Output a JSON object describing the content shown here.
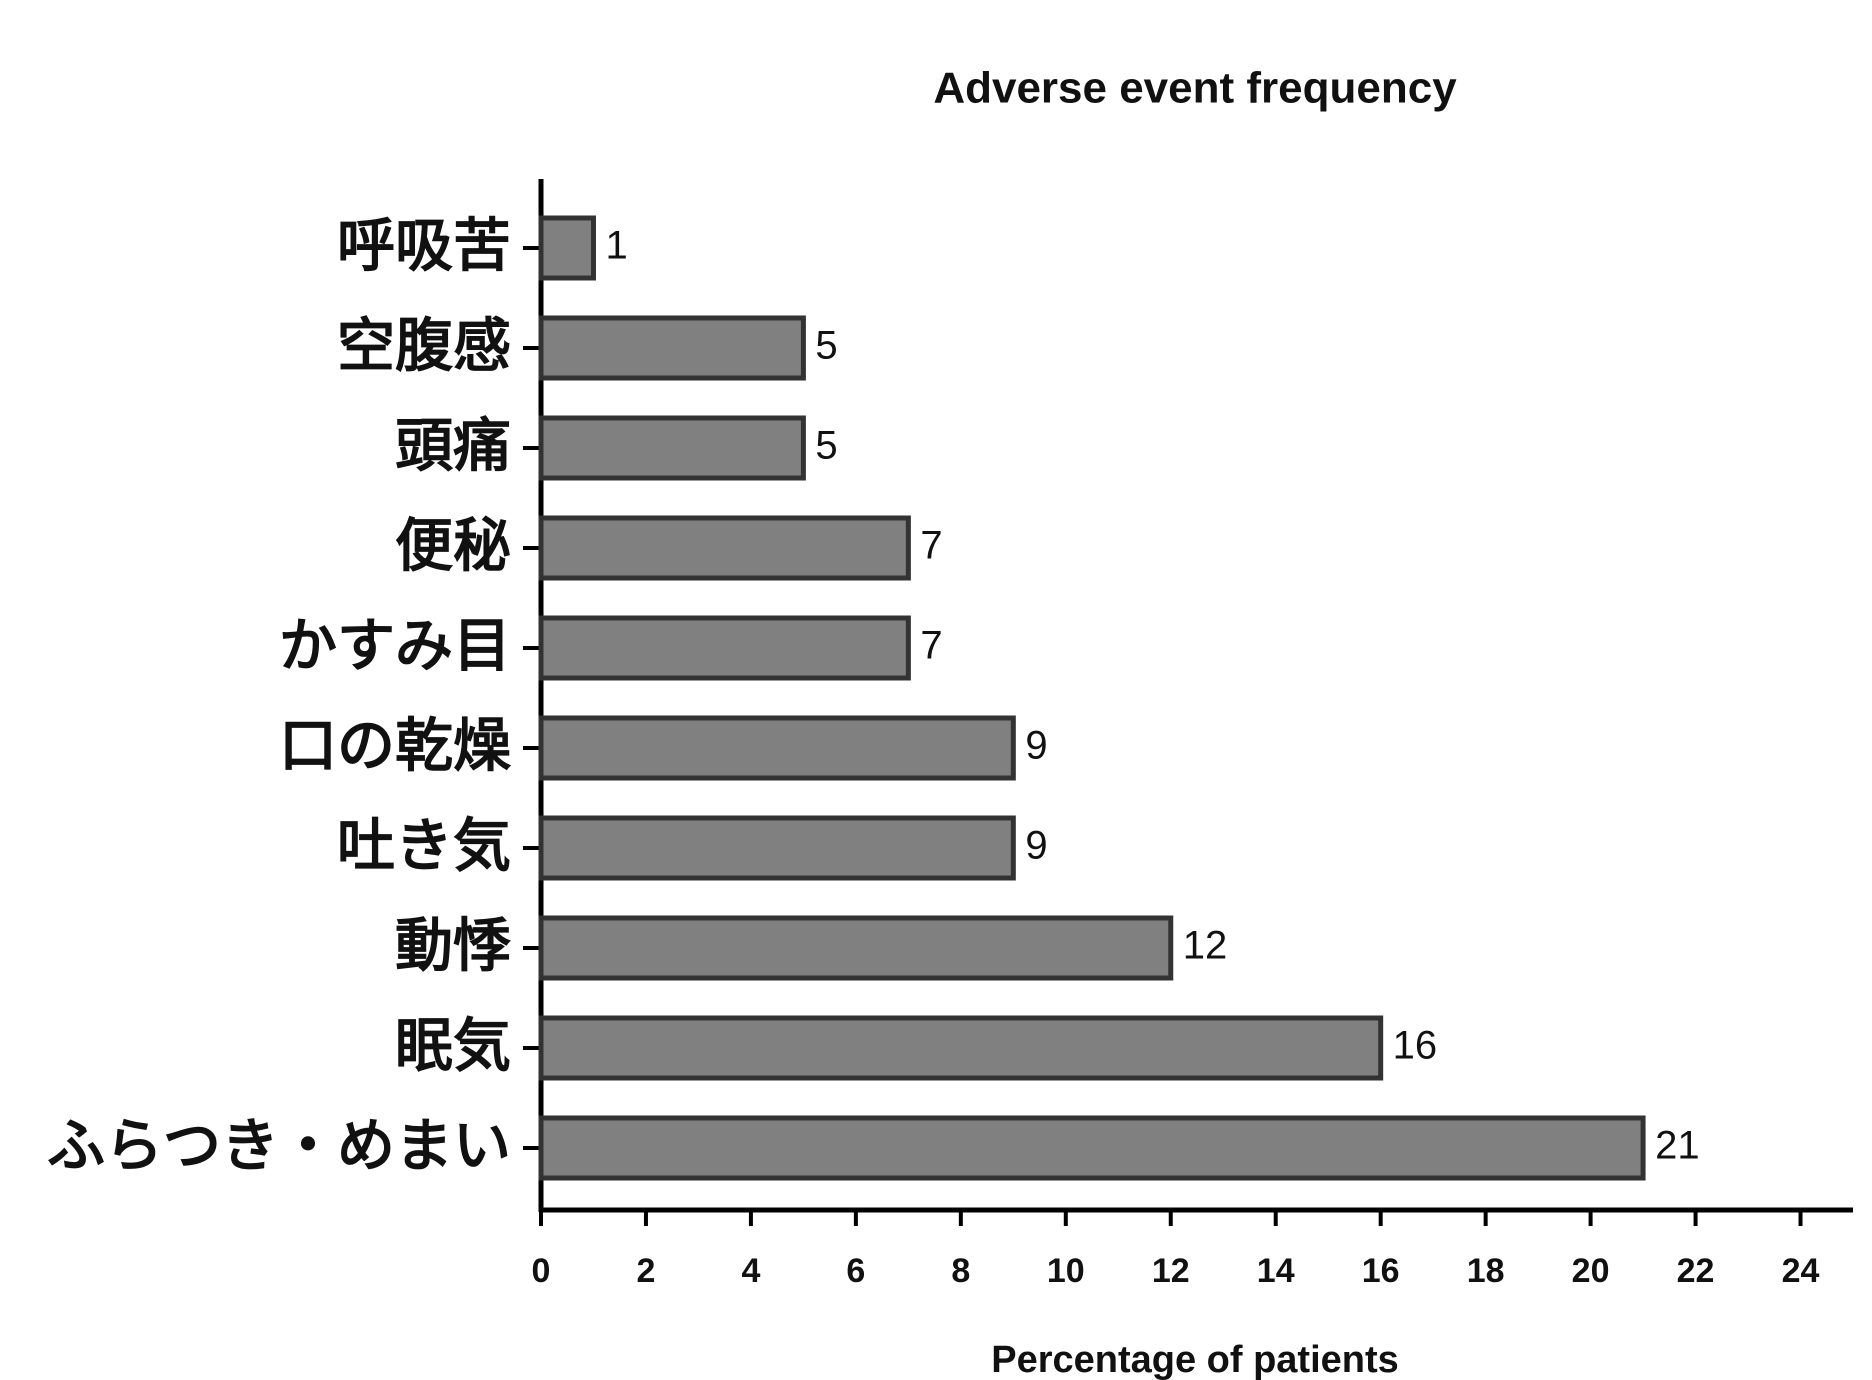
{
  "chart_data": {
    "type": "bar",
    "orientation": "horizontal",
    "title": "Adverse event frequency",
    "x_label": "Percentage of patients",
    "categories": [
      "呼吸苦",
      "空腹感",
      "頭痛",
      "便秘",
      "かすみ目",
      "口の乾燥",
      "吐き気",
      "動悸",
      "眠気",
      "ふらつき・めまい"
    ],
    "values": [
      1,
      5,
      5,
      7,
      7,
      9,
      9,
      12,
      16,
      21
    ],
    "color": "#808080",
    "xlim": [
      0,
      25
    ],
    "xticks": [
      0,
      2,
      4,
      6,
      8,
      10,
      12,
      14,
      16,
      18,
      20,
      22,
      24
    ],
    "grid": false
  }
}
